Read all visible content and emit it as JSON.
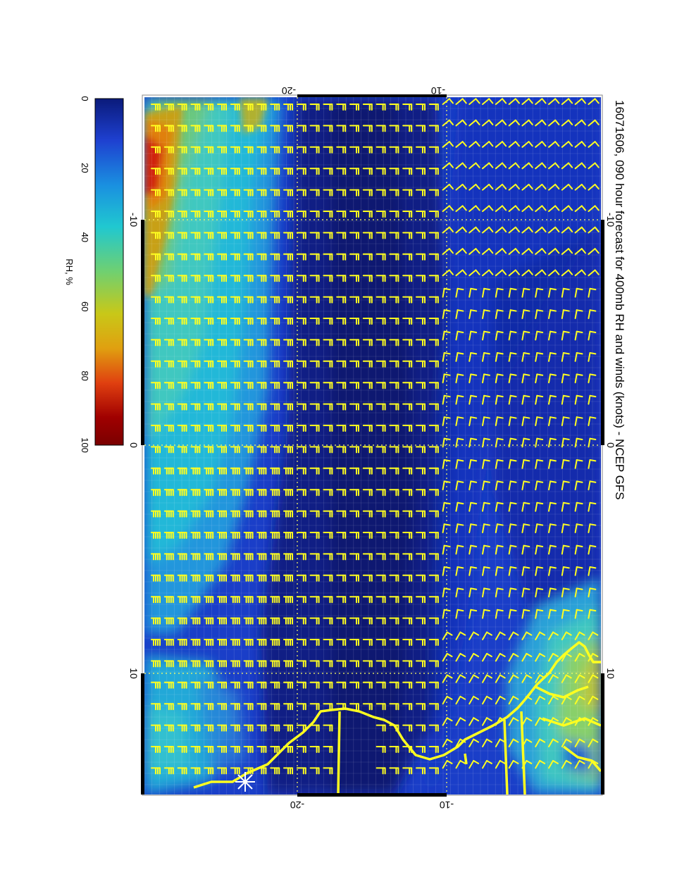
{
  "title": "16071606, 090 hour forecast for 400mb RH and winds (knots) - NCEP GFS",
  "colorbar": {
    "label": "RH, %",
    "ticks": [
      "0",
      "20",
      "40",
      "60",
      "80",
      "100"
    ],
    "stops": [
      "#0a1a7a",
      "#1e40d0",
      "#1a90e0",
      "#20c8d0",
      "#70d070",
      "#c8c818",
      "#e0a010",
      "#e04010",
      "#a00000",
      "#7a0000"
    ]
  },
  "map": {
    "lat_ticks_top": [
      "-20",
      "-10"
    ],
    "lat_ticks_bottom": [
      "-20",
      "-10"
    ],
    "lon_ticks_left": [
      "-10",
      "0",
      "10"
    ],
    "lon_ticks_right": [
      "-10",
      "0",
      "10"
    ],
    "coastline_color": "#ffff20",
    "barb_color": "#ffff20",
    "grid_color": "#ffff60",
    "regions": {
      "ocean_color": "#1a3ec8",
      "deep_color": "#0e1e8c",
      "moist_color": "#22b8d8",
      "dry_color": "#0b1a78",
      "high_rh_color": "#c8a018",
      "very_high_rh_color": "#d02010"
    }
  }
}
